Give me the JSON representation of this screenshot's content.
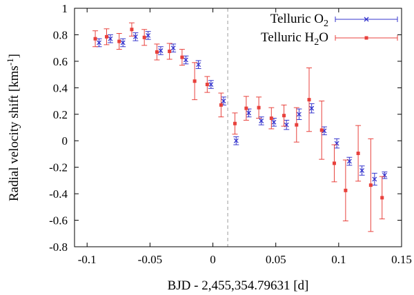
{
  "chart_data": {
    "type": "scatter",
    "title": "",
    "xlabel": "BJD - 2,455,354.79631 [d]",
    "ylabel": "Radial velocity shift [kms",
    "ylabel_sup": "-1",
    "ylabel_close": "]",
    "xlim": [
      -0.11,
      0.15
    ],
    "ylim": [
      -0.8,
      1.0
    ],
    "xticks": [
      -0.1,
      -0.05,
      0,
      0.05,
      0.1,
      0.15
    ],
    "xtick_labels": [
      "-0.1",
      "-0.05",
      "0",
      "0.05",
      "0.1",
      "0.15"
    ],
    "yticks": [
      -0.8,
      -0.6,
      -0.4,
      -0.2,
      0,
      0.2,
      0.4,
      0.6,
      0.8,
      1.0
    ],
    "ytick_labels": [
      "-0.8",
      "-0.6",
      "-0.4",
      "-0.2",
      "0",
      "0.2",
      "0.4",
      "0.6",
      "0.8",
      "1"
    ],
    "vline_x": 0.0118,
    "legend_position": "top-right",
    "series": [
      {
        "name": "Telluric O2",
        "label_main": "Telluric  O",
        "label_sub": "2",
        "label_tail": "",
        "color": "#3333cc",
        "marker": "x",
        "points": [
          {
            "x": -0.0905,
            "y": 0.74,
            "err": 0.03
          },
          {
            "x": -0.0815,
            "y": 0.77,
            "err": 0.03
          },
          {
            "x": -0.0715,
            "y": 0.74,
            "err": 0.03
          },
          {
            "x": -0.0615,
            "y": 0.785,
            "err": 0.03
          },
          {
            "x": -0.0515,
            "y": 0.795,
            "err": 0.03
          },
          {
            "x": -0.0415,
            "y": 0.68,
            "err": 0.03
          },
          {
            "x": -0.0315,
            "y": 0.7,
            "err": 0.03
          },
          {
            "x": -0.0215,
            "y": 0.61,
            "err": 0.03
          },
          {
            "x": -0.0115,
            "y": 0.575,
            "err": 0.03
          },
          {
            "x": -0.0015,
            "y": 0.425,
            "err": 0.03
          },
          {
            "x": 0.0085,
            "y": 0.3,
            "err": 0.03
          },
          {
            "x": 0.0185,
            "y": 0.0,
            "err": 0.03
          },
          {
            "x": 0.0285,
            "y": 0.21,
            "err": 0.03
          },
          {
            "x": 0.0385,
            "y": 0.15,
            "err": 0.03
          },
          {
            "x": 0.0485,
            "y": 0.14,
            "err": 0.03
          },
          {
            "x": 0.0585,
            "y": 0.12,
            "err": 0.035
          },
          {
            "x": 0.0685,
            "y": 0.2,
            "err": 0.04
          },
          {
            "x": 0.0785,
            "y": 0.245,
            "err": 0.035
          },
          {
            "x": 0.0885,
            "y": 0.075,
            "err": 0.03
          },
          {
            "x": 0.0985,
            "y": -0.02,
            "err": 0.035
          },
          {
            "x": 0.1085,
            "y": -0.155,
            "err": 0.03
          },
          {
            "x": 0.1185,
            "y": -0.225,
            "err": 0.035
          },
          {
            "x": 0.1285,
            "y": -0.29,
            "err": 0.045
          },
          {
            "x": 0.1365,
            "y": -0.26,
            "err": 0.025
          }
        ]
      },
      {
        "name": "Telluric H2O",
        "label_main": "Telluric  H",
        "label_sub": "2",
        "label_tail": "O",
        "color": "#e8413c",
        "marker": "square",
        "points": [
          {
            "x": -0.0935,
            "y": 0.77,
            "err": 0.06
          },
          {
            "x": -0.0845,
            "y": 0.785,
            "err": 0.06
          },
          {
            "x": -0.0745,
            "y": 0.75,
            "err": 0.06
          },
          {
            "x": -0.0645,
            "y": 0.84,
            "err": 0.05
          },
          {
            "x": -0.0545,
            "y": 0.78,
            "err": 0.06
          },
          {
            "x": -0.0445,
            "y": 0.67,
            "err": 0.06
          },
          {
            "x": -0.0345,
            "y": 0.675,
            "err": 0.06
          },
          {
            "x": -0.0245,
            "y": 0.63,
            "err": 0.06
          },
          {
            "x": -0.0145,
            "y": 0.45,
            "err": 0.14
          },
          {
            "x": -0.0045,
            "y": 0.425,
            "err": 0.06
          },
          {
            "x": 0.0065,
            "y": 0.27,
            "err": 0.09
          },
          {
            "x": 0.0175,
            "y": 0.13,
            "err": 0.08
          },
          {
            "x": 0.0265,
            "y": 0.245,
            "err": 0.09
          },
          {
            "x": 0.0365,
            "y": 0.25,
            "err": 0.08
          },
          {
            "x": 0.0465,
            "y": 0.17,
            "err": 0.08
          },
          {
            "x": 0.0565,
            "y": 0.19,
            "err": 0.08
          },
          {
            "x": 0.0665,
            "y": 0.12,
            "err": 0.13
          },
          {
            "x": 0.0765,
            "y": 0.31,
            "err": 0.24
          },
          {
            "x": 0.0865,
            "y": 0.08,
            "err": 0.22
          },
          {
            "x": 0.0965,
            "y": -0.17,
            "err": 0.14
          },
          {
            "x": 0.1055,
            "y": -0.375,
            "err": 0.23
          },
          {
            "x": 0.1155,
            "y": -0.095,
            "err": 0.21
          },
          {
            "x": 0.1255,
            "y": -0.335,
            "err": 0.35
          },
          {
            "x": 0.1345,
            "y": -0.43,
            "err": 0.16
          }
        ]
      }
    ]
  }
}
